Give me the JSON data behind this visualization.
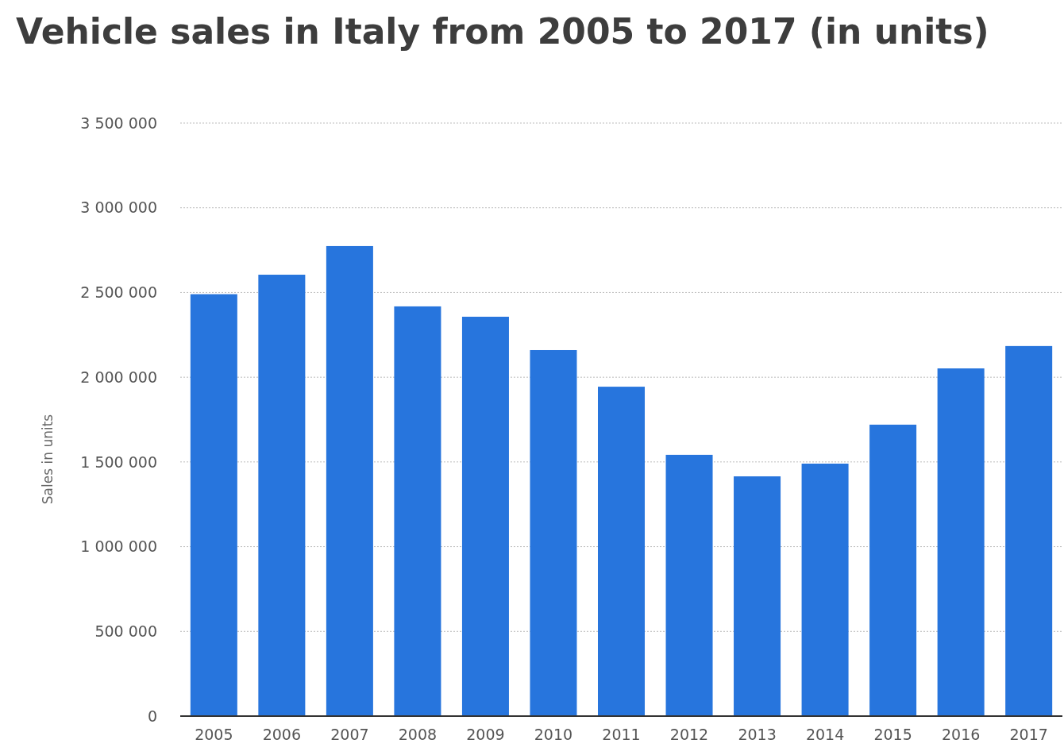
{
  "chart_data": {
    "type": "bar",
    "title": "Vehicle sales in Italy from 2005 to 2017 (in units)",
    "ylabel": "Sales in units",
    "categories": [
      "2005",
      "2006",
      "2007",
      "2008",
      "2009",
      "2010",
      "2011",
      "2012",
      "2013",
      "2014",
      "2015",
      "2016",
      "2017"
    ],
    "values": [
      2490000,
      2605000,
      2774000,
      2418000,
      2357000,
      2160000,
      1944000,
      1542000,
      1415000,
      1490000,
      1720000,
      2052000,
      2184000
    ],
    "color": "#2775dd",
    "ylim": [
      0,
      3500000
    ],
    "yticks": [
      0,
      {
        "value": 500000,
        "label": "500 000"
      },
      {
        "value": 1000000,
        "label": "1 000 000"
      },
      {
        "value": 1500000,
        "label": "1 500 000"
      },
      {
        "value": 2000000,
        "label": "2 000 000"
      },
      {
        "value": 2500000,
        "label": "2 500 000"
      },
      {
        "value": 3000000,
        "label": "3 000 000"
      },
      {
        "value": 3500000,
        "label": "3 500 000"
      }
    ],
    "grid": "y"
  }
}
